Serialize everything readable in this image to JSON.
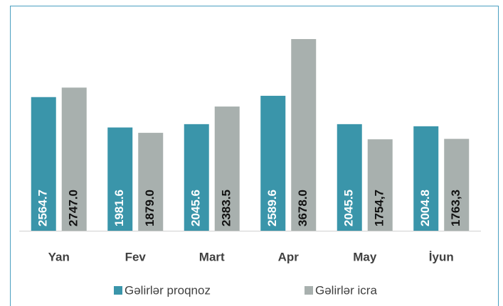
{
  "chart_data": {
    "type": "bar",
    "categories": [
      "Yan",
      "Fev",
      "Mart",
      "Apr",
      "May",
      "İyun"
    ],
    "series": [
      {
        "name": "Gəlirlər proqnoz",
        "color": "#3a95aa",
        "values": [
          2564.7,
          1981.6,
          2045.6,
          2589.6,
          2045.5,
          2004.8
        ],
        "value_labels": [
          "2564.7",
          "1981.6",
          "2045.6",
          "2589.6",
          "2045.5",
          "2004.8"
        ]
      },
      {
        "name": "Gəlirlər icra",
        "color": "#a8b0ae",
        "values": [
          2747.0,
          1879.0,
          2383.5,
          3678.0,
          1754.7,
          1763.3
        ],
        "value_labels": [
          "2747.0",
          "1879.0",
          "2383.5",
          "3678.0",
          "1754,7",
          "1763,3"
        ]
      }
    ],
    "ylim": [
      0,
      4000
    ],
    "legend": "bottom"
  }
}
